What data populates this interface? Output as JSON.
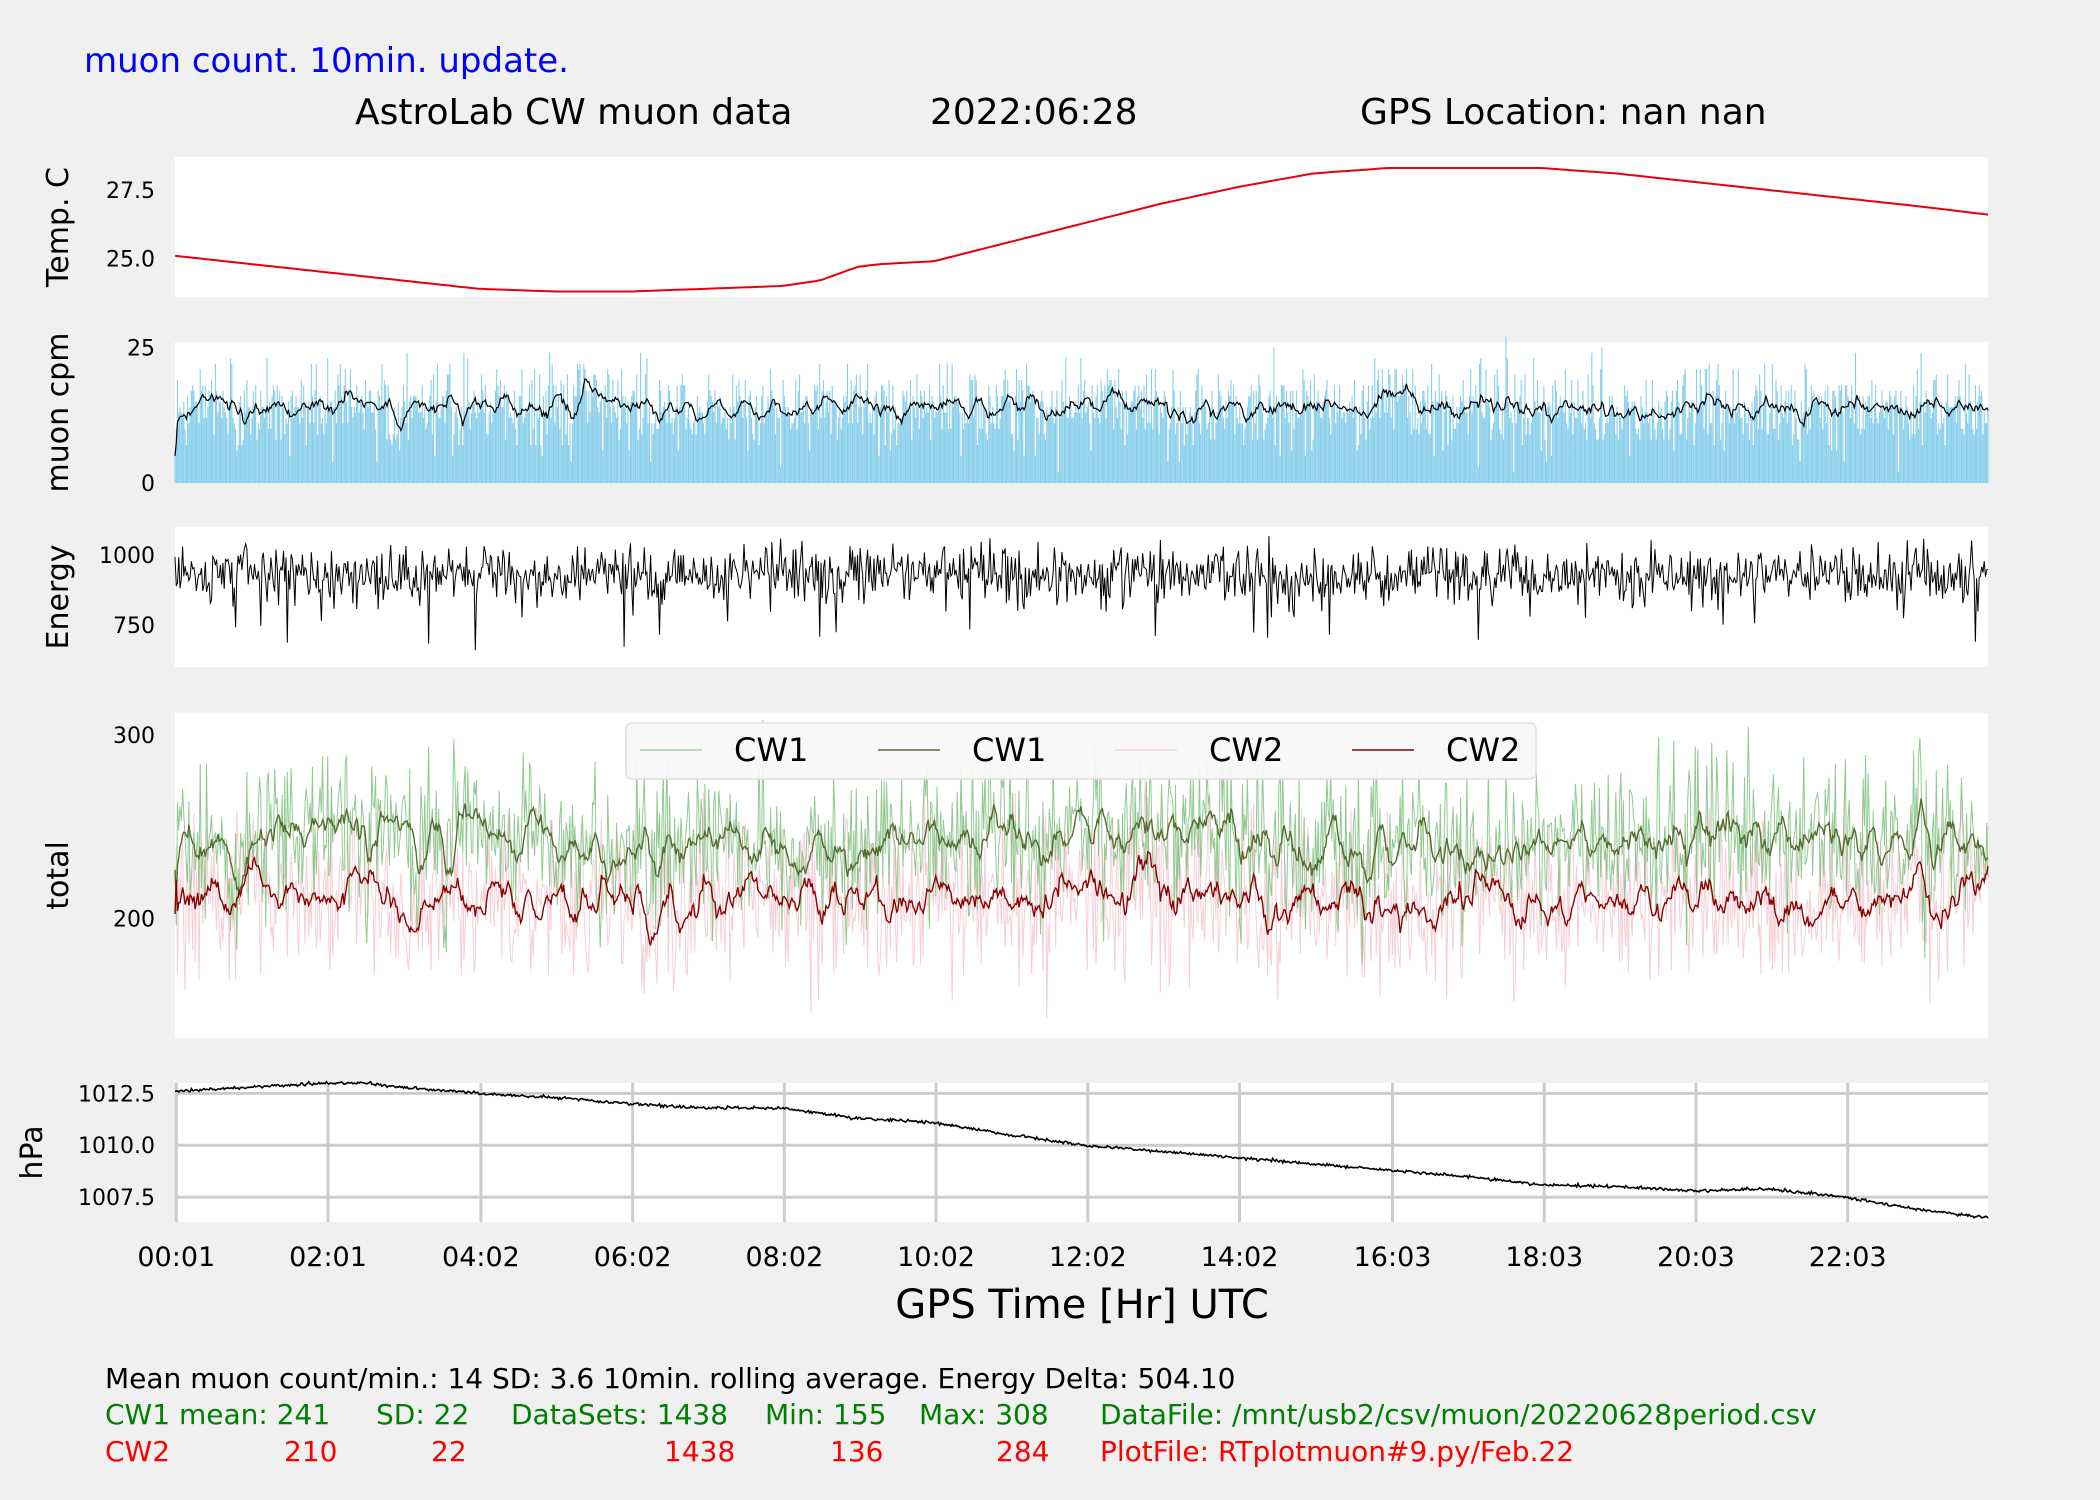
{
  "header": {
    "top_note": "muon count.  10min. update.",
    "title_left": "AstroLab CW muon data",
    "title_date": "2022:06:28",
    "title_gps": "GPS Location: nan   nan"
  },
  "colors": {
    "background": "#f0f0f0",
    "plot_bg": "#ffffff",
    "temp_line": "#e8000b",
    "muon_bars": "#87ceeb",
    "black": "#000000",
    "cw1_raw": "#7fbf7f",
    "cw1_avg": "#556b2f",
    "cw2_raw": "#f4c2cc",
    "cw2_avg": "#8b0000",
    "note_blue": "#0000ff",
    "green_text": "#008000",
    "red_text": "#ff0000",
    "grid": "#cccccc"
  },
  "chart_data": [
    {
      "type": "line",
      "ylabel": "Temp. C",
      "yticks": [
        25.0,
        27.5
      ],
      "ytick_labels": [
        "25.0",
        "27.5"
      ],
      "ylim": [
        23.6,
        28.7
      ],
      "series": [
        {
          "x": [
            0,
            1,
            2,
            3,
            4,
            5,
            6,
            7,
            8,
            8.5,
            9,
            9.3,
            10,
            11,
            12,
            13,
            14,
            15,
            16,
            17,
            18,
            19,
            20,
            21,
            22,
            23,
            23.9
          ],
          "values": [
            25.1,
            24.8,
            24.5,
            24.2,
            23.9,
            23.8,
            23.8,
            23.9,
            24.0,
            24.2,
            24.7,
            24.8,
            24.9,
            25.6,
            26.3,
            27.0,
            27.6,
            28.1,
            28.3,
            28.3,
            28.3,
            28.1,
            27.8,
            27.5,
            27.2,
            26.9,
            26.6
          ]
        }
      ]
    },
    {
      "type": "bar",
      "ylabel": "muon cpm",
      "yticks": [
        0,
        25
      ],
      "ytick_labels": [
        "0",
        "25"
      ],
      "ylim": [
        0,
        26
      ],
      "x_range": [
        0,
        23.9
      ],
      "bar_count": 1438,
      "mean": 14,
      "sd": 3.6,
      "rolling_window_min": 10,
      "series": [
        {
          "values_desc": "per-minute muon counts 2 to 27, mean 14"
        }
      ]
    },
    {
      "type": "line",
      "ylabel": "Energy",
      "yticks": [
        750,
        1000
      ],
      "ytick_labels": [
        "750",
        "1000"
      ],
      "ylim": [
        600,
        1100
      ],
      "x_range": [
        0,
        23.9
      ],
      "point_count": 1438,
      "energy_delta": 504.1,
      "series": [
        {
          "values_desc": "per-minute energy 600 to 1100, mean about 930"
        }
      ]
    },
    {
      "type": "line",
      "ylabel": "total",
      "yticks": [
        200,
        300
      ],
      "ytick_labels": [
        "200",
        "300"
      ],
      "ylim": [
        135,
        312
      ],
      "x_range": [
        0,
        23.9
      ],
      "legend": "upper-center",
      "legend_entries": [
        "CW1",
        "CW1",
        "CW2",
        "CW2"
      ],
      "series": [
        {
          "name": "CW1",
          "style": "raw",
          "mean": 241,
          "sd": 22,
          "min": 155,
          "max": 308,
          "count": 1438
        },
        {
          "name": "CW1",
          "style": "rolling",
          "mean": 241
        },
        {
          "name": "CW2",
          "style": "raw",
          "mean": 210,
          "sd": 22,
          "min": 136,
          "max": 284,
          "count": 1438
        },
        {
          "name": "CW2",
          "style": "rolling",
          "mean": 210
        }
      ]
    },
    {
      "type": "line",
      "ylabel": "hPa",
      "yticks": [
        1007.5,
        1010.0,
        1012.5
      ],
      "ytick_labels": [
        "1007.5",
        "1010.0",
        "1012.5"
      ],
      "ylim": [
        1006.3,
        1013.0
      ],
      "grid": true,
      "xlabel": "GPS Time  [Hr] UTC",
      "xticks": [
        0.017,
        2.017,
        4.033,
        6.033,
        8.033,
        10.033,
        12.033,
        14.033,
        16.05,
        18.05,
        20.05,
        22.05
      ],
      "xtick_labels": [
        "00:01",
        "02:01",
        "04:02",
        "06:02",
        "08:02",
        "10:02",
        "12:02",
        "14:02",
        "16:03",
        "18:03",
        "20:03",
        "22:03"
      ],
      "series": [
        {
          "x": [
            0,
            1,
            2,
            2.5,
            3,
            4,
            5,
            6,
            7,
            8,
            9,
            10,
            11,
            12,
            13,
            14,
            15,
            16,
            17,
            18,
            19,
            20,
            21,
            22,
            23,
            23.9
          ],
          "values": [
            1012.6,
            1012.8,
            1013.0,
            1013.0,
            1012.8,
            1012.5,
            1012.3,
            1012.0,
            1011.8,
            1011.8,
            1011.3,
            1011.1,
            1010.5,
            1010.0,
            1009.7,
            1009.4,
            1009.1,
            1008.8,
            1008.5,
            1008.1,
            1008.0,
            1007.8,
            1007.9,
            1007.5,
            1006.9,
            1006.5
          ]
        }
      ]
    }
  ],
  "footer": {
    "line1": "Mean muon count/min.: 14  SD: 3.6   10min. rolling average.    Energy Delta:  504.10",
    "cw1": {
      "label": "CW1 mean: 241",
      "sd": "SD: 22",
      "datasets": "DataSets: 1438",
      "min": "Min: 155",
      "max": "Max: 308",
      "file": "DataFile: /mnt/usb2/csv/muon/20220628period.csv"
    },
    "cw2": {
      "label": "CW2",
      "mean": "210",
      "sd": "22",
      "datasets": "1438",
      "min": "136",
      "max": "284",
      "file": "PlotFile: RTplotmuon#9.py/Feb.22"
    }
  }
}
